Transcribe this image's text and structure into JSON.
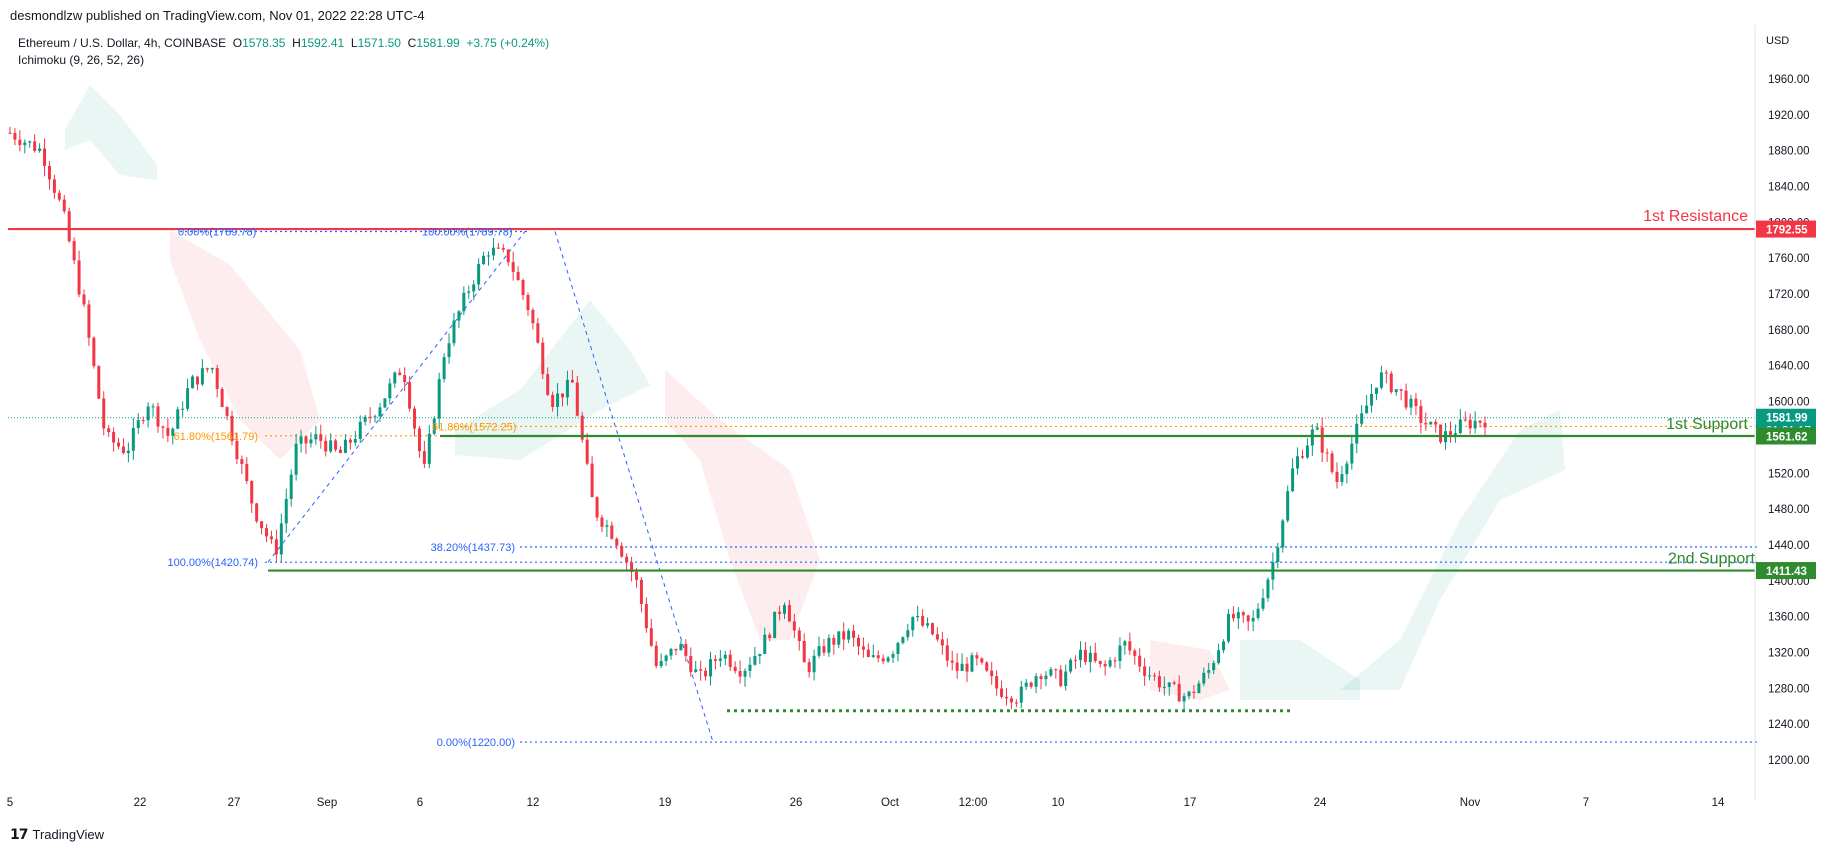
{
  "topbar": {
    "text": "desmondlzw published on TradingView.com, Nov 01, 2022 22:28 UTC-4"
  },
  "header": {
    "symbol": "Ethereum / U.S. Dollar, 4h, COINBASE",
    "o_label": "O",
    "o": "1578.35",
    "h_label": "H",
    "h": "1592.41",
    "l_label": "L",
    "l": "1571.50",
    "c_label": "C",
    "c": "1581.99",
    "change": "+3.75 (+0.24%)",
    "indicator": "Ichimoku (9, 26, 52, 26)"
  },
  "currency": "USD",
  "footer": {
    "brand": "TradingView"
  },
  "colors": {
    "up": "#089981",
    "down": "#f23645",
    "resistance": "#f23645",
    "support": "#2e8b2e",
    "fib": "#2962ff",
    "fib618": "#ff9800"
  },
  "chart_data": {
    "type": "candlestick",
    "y_axis": {
      "min": 1180,
      "max": 1990,
      "ticks": [
        "1200.00",
        "1240.00",
        "1280.00",
        "1320.00",
        "1360.00",
        "1400.00",
        "1440.00",
        "1480.00",
        "1520.00",
        "1560.00",
        "1600.00",
        "1640.00",
        "1680.00",
        "1720.00",
        "1760.00",
        "1800.00",
        "1840.00",
        "1880.00",
        "1920.00",
        "1960.00"
      ]
    },
    "x_axis": {
      "ticks": [
        "5",
        "22",
        "27",
        "Sep",
        "6",
        "12",
        "19",
        "26",
        "Oct",
        "12:00",
        "10",
        "17",
        "24",
        "Nov",
        "7",
        "14"
      ]
    },
    "price_labels": [
      {
        "value": 1792.55,
        "text": "1792.55",
        "color": "#f23645"
      },
      {
        "value": 1581.99,
        "text": "1581.99",
        "sub": "01:31:17",
        "color": "#089981"
      },
      {
        "value": 1561.62,
        "text": "1561.62",
        "color": "#2e8b2e"
      },
      {
        "value": 1411.43,
        "text": "1411.43",
        "color": "#2e8b2e"
      }
    ],
    "levels": [
      {
        "name": "1st Resistance",
        "value": 1792.55,
        "color": "#f23645"
      },
      {
        "name": "1st Support",
        "value": 1561.62,
        "color": "#2e8b2e"
      },
      {
        "name": "2nd Support",
        "value": 1411.43,
        "color": "#2e8b2e"
      }
    ],
    "fib_labels": [
      {
        "text": "0.00%(1789.78)",
        "value": 1789.78
      },
      {
        "text": "61.80%(1561.79)",
        "value": 1561.79
      },
      {
        "text": "100.00%(1420.74)",
        "value": 1420.74
      },
      {
        "text": "100.00%(1789.78)",
        "value": 1789.78
      },
      {
        "text": "61.80%(1572.25)",
        "value": 1572.25
      },
      {
        "text": "38.20%(1437.73)",
        "value": 1437.73
      },
      {
        "text": "0.00%(1220.00)",
        "value": 1220.0
      }
    ],
    "swing_low_dotted": 1255,
    "price_path": [
      [
        0,
        1900
      ],
      [
        0.03,
        1880
      ],
      [
        0.05,
        1810
      ],
      [
        0.07,
        1700
      ],
      [
        0.09,
        1560
      ],
      [
        0.11,
        1545
      ],
      [
        0.13,
        1600
      ],
      [
        0.15,
        1560
      ],
      [
        0.17,
        1620
      ],
      [
        0.19,
        1640
      ],
      [
        0.21,
        1560
      ],
      [
        0.23,
        1480
      ],
      [
        0.25,
        1430
      ],
      [
        0.27,
        1550
      ],
      [
        0.29,
        1560
      ],
      [
        0.31,
        1540
      ],
      [
        0.33,
        1570
      ],
      [
        0.35,
        1600
      ],
      [
        0.37,
        1640
      ],
      [
        0.39,
        1520
      ],
      [
        0.41,
        1660
      ],
      [
        0.43,
        1720
      ],
      [
        0.45,
        1770
      ],
      [
        0.47,
        1760
      ],
      [
        0.49,
        1700
      ],
      [
        0.51,
        1600
      ],
      [
        0.53,
        1620
      ],
      [
        0.55,
        1480
      ],
      [
        0.57,
        1450
      ],
      [
        0.59,
        1400
      ],
      [
        0.61,
        1300
      ],
      [
        0.63,
        1330
      ],
      [
        0.65,
        1290
      ],
      [
        0.67,
        1320
      ],
      [
        0.69,
        1300
      ],
      [
        0.71,
        1330
      ],
      [
        0.73,
        1380
      ],
      [
        0.75,
        1300
      ],
      [
        0.77,
        1330
      ],
      [
        0.79,
        1340
      ],
      [
        0.81,
        1310
      ],
      [
        0.83,
        1320
      ],
      [
        0.85,
        1360
      ],
      [
        0.87,
        1340
      ],
      [
        0.89,
        1300
      ],
      [
        0.91,
        1310
      ],
      [
        0.93,
        1280
      ],
      [
        0.95,
        1270
      ],
      [
        0.97,
        1300
      ],
      [
        0.99,
        1290
      ],
      [
        1.01,
        1320
      ],
      [
        1.03,
        1300
      ],
      [
        1.05,
        1330
      ],
      [
        1.07,
        1300
      ],
      [
        1.09,
        1280
      ],
      [
        1.11,
        1270
      ],
      [
        1.13,
        1300
      ],
      [
        1.15,
        1360
      ],
      [
        1.17,
        1350
      ],
      [
        1.19,
        1420
      ],
      [
        1.21,
        1530
      ],
      [
        1.23,
        1570
      ],
      [
        1.25,
        1510
      ],
      [
        1.27,
        1570
      ],
      [
        1.29,
        1630
      ],
      [
        1.31,
        1610
      ],
      [
        1.33,
        1580
      ],
      [
        1.35,
        1560
      ],
      [
        1.37,
        1575
      ],
      [
        1.39,
        1580
      ]
    ]
  }
}
